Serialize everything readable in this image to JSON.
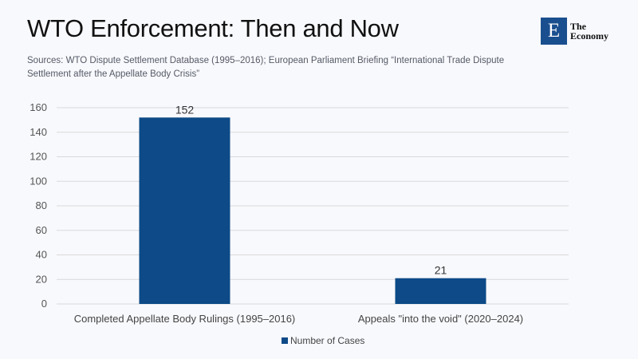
{
  "header": {
    "title": "WTO Enforcement: Then and Now",
    "subtitle": "Sources: WTO Dispute Settlement Database (1995–2016); European Parliament Briefing “International Trade Dispute Settlement after the Appellate Body Crisis”"
  },
  "logo": {
    "letter": "E",
    "line1": "The",
    "line2": "Economy",
    "color": "#1a4f8f"
  },
  "chart_data": {
    "type": "bar",
    "categories": [
      "Completed Appellate Body Rulings (1995–2016)",
      "Appeals \"into the void\" (2020–2024)"
    ],
    "series": [
      {
        "name": "Number of Cases",
        "values": [
          152,
          21
        ],
        "color": "#0d4a87"
      }
    ],
    "ylim": [
      0,
      160
    ],
    "yticks": [
      0,
      20,
      40,
      60,
      80,
      100,
      120,
      140,
      160
    ],
    "grid": true,
    "legend": "bottom",
    "data_labels": true
  }
}
